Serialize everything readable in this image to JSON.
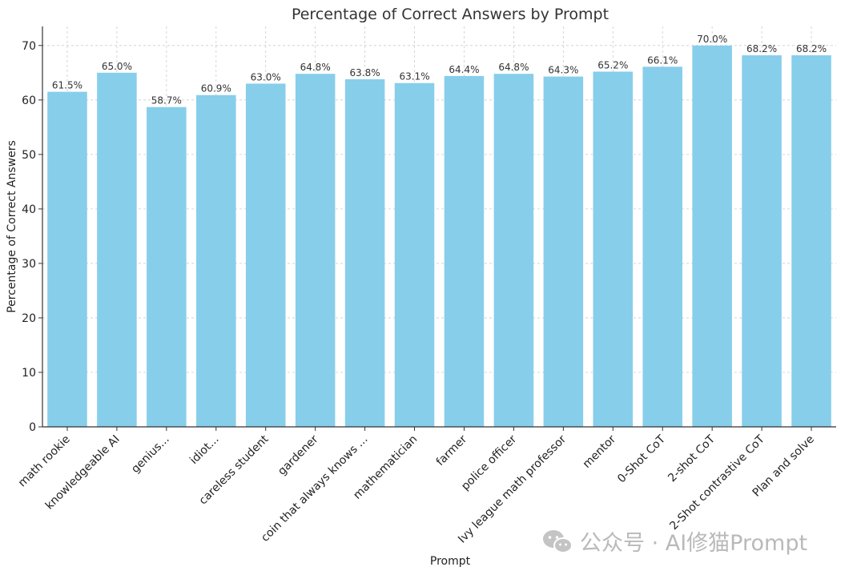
{
  "chart_data": {
    "type": "bar",
    "title": "Percentage of Correct Answers by Prompt",
    "xlabel": "Prompt",
    "ylabel": "Percentage of Correct Answers",
    "ylim": [
      0,
      73.5
    ],
    "yticks": [
      0,
      10,
      20,
      30,
      40,
      50,
      60,
      70
    ],
    "grid": true,
    "bar_color": "#87CEEB",
    "categories": [
      "math rookie",
      "knowledgeable AI",
      "genius...",
      "idiot...",
      "careless student",
      "gardener",
      "coin that always knows ...",
      "mathematician",
      "farmer",
      "police officer",
      "Ivy league math professor",
      "mentor",
      "0-Shot CoT",
      "2-shot CoT",
      "2-Shot contrastive CoT",
      "Plan and solve"
    ],
    "values": [
      61.5,
      65.0,
      58.7,
      60.9,
      63.0,
      64.8,
      63.8,
      63.1,
      64.4,
      64.8,
      64.3,
      65.2,
      66.1,
      70.0,
      68.2,
      68.2
    ],
    "data_labels": [
      "61.5%",
      "65.0%",
      "58.7%",
      "60.9%",
      "63.0%",
      "64.8%",
      "63.8%",
      "63.1%",
      "64.4%",
      "64.8%",
      "64.3%",
      "65.2%",
      "66.1%",
      "70.0%",
      "68.2%",
      "68.2%"
    ]
  },
  "watermark": {
    "icon": "wechat-icon",
    "text": "公众号 · AI修猫Prompt"
  }
}
